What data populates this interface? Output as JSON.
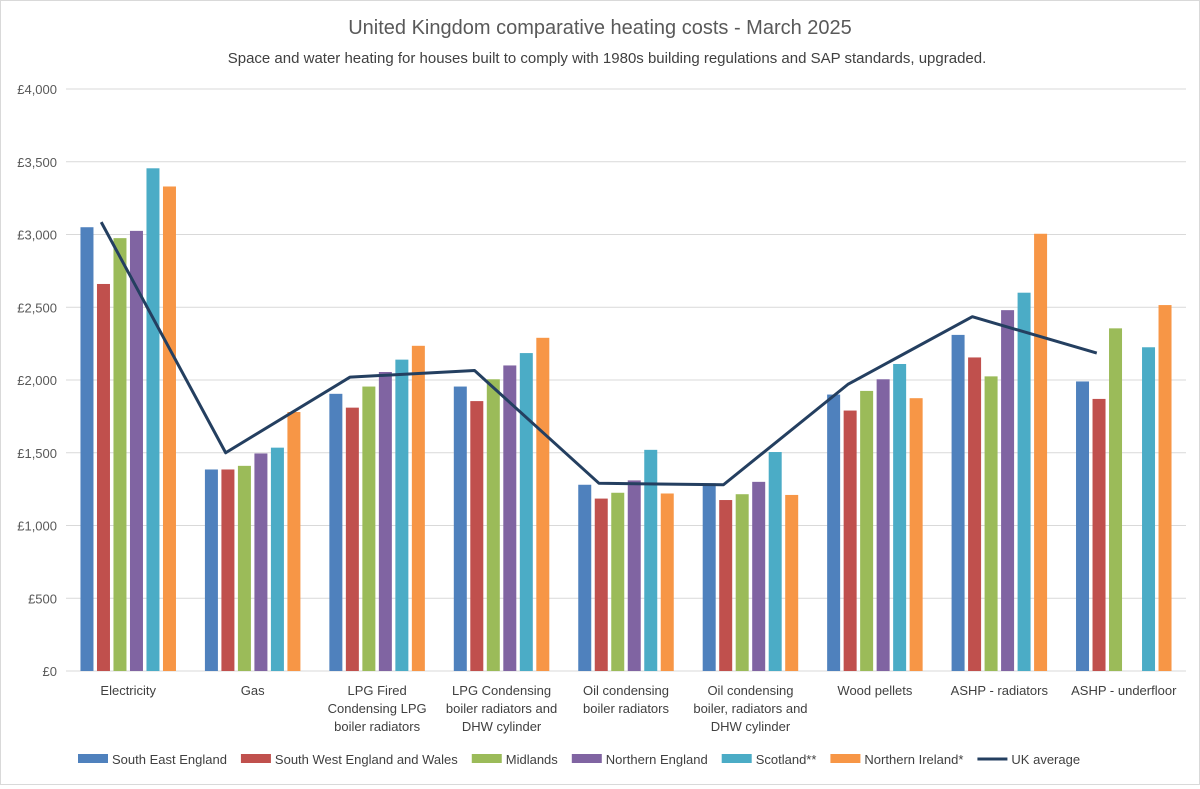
{
  "chart_data": {
    "type": "bar",
    "title": "United Kingdom comparative heating costs - March 2025",
    "subtitle": "Space and water heating for houses built to comply with 1980s building regulations and SAP standards, upgraded.",
    "xlabel": "",
    "ylabel": "",
    "ylim": [
      0,
      4000
    ],
    "yticks": [
      "£0",
      "£500",
      "£1,000",
      "£1,500",
      "£2,000",
      "£2,500",
      "£3,000",
      "£3,500",
      "£4,000"
    ],
    "grid": true,
    "legend_position": "bottom",
    "categories": [
      [
        "Electricity"
      ],
      [
        "Gas"
      ],
      [
        "LPG Fired",
        "Condensing LPG",
        "boiler radiators"
      ],
      [
        "LPG Condensing",
        "boiler radiators and",
        "DHW cylinder"
      ],
      [
        "Oil condensing",
        "boiler radiators"
      ],
      [
        "Oil condensing",
        "boiler, radiators and",
        "DHW cylinder"
      ],
      [
        "Wood pellets"
      ],
      [
        "ASHP - radiators"
      ],
      [
        "ASHP -  underfloor"
      ]
    ],
    "series": [
      {
        "name": "South East England",
        "type": "bar",
        "color": "#4f81bd",
        "values": [
          3050,
          1385,
          1905,
          1955,
          1280,
          1290,
          1900,
          2310,
          1990
        ]
      },
      {
        "name": "South West England and Wales",
        "type": "bar",
        "color": "#c0504d",
        "values": [
          2660,
          1385,
          1810,
          1855,
          1185,
          1175,
          1790,
          2155,
          1870
        ]
      },
      {
        "name": "Midlands",
        "type": "bar",
        "color": "#9bbb59",
        "values": [
          2975,
          1410,
          1955,
          2005,
          1225,
          1215,
          1925,
          2025,
          2355
        ]
      },
      {
        "name": "Northern England",
        "type": "bar",
        "color": "#8064a2",
        "values": [
          3025,
          1495,
          2055,
          2100,
          1310,
          1300,
          2005,
          2480,
          null
        ]
      },
      {
        "name": "Scotland**",
        "type": "bar",
        "color": "#4bacc6",
        "values": [
          3455,
          1535,
          2140,
          2185,
          1520,
          1505,
          2110,
          2600,
          2225
        ]
      },
      {
        "name": "Northern Ireland*",
        "type": "bar",
        "color": "#f79646",
        "values": [
          3330,
          1780,
          2235,
          2290,
          1220,
          1210,
          1875,
          3005,
          2515
        ]
      },
      {
        "name": "UK average",
        "type": "line",
        "color": "#243f60",
        "values": [
          3085,
          1500,
          2020,
          2065,
          1290,
          1280,
          1970,
          2435,
          2185
        ]
      }
    ]
  }
}
